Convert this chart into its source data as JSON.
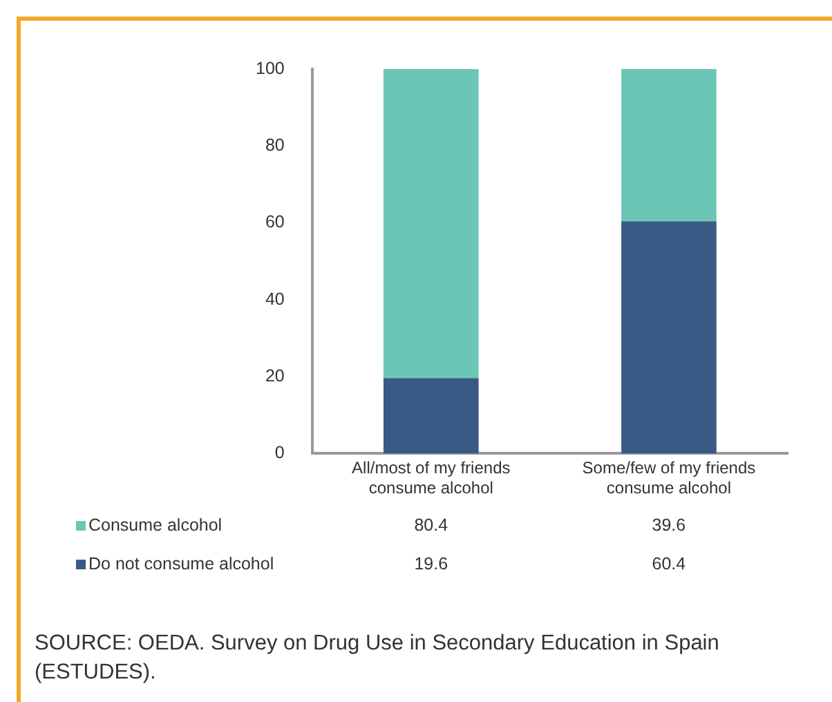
{
  "chart_data": {
    "type": "bar",
    "stacked": true,
    "categories": [
      "All/most of my friends consume alcohol",
      "Some/few of my friends consume alcohol"
    ],
    "series": [
      {
        "name": "Do not consume alcohol",
        "color": "#3a5a85",
        "values": [
          19.6,
          60.4
        ]
      },
      {
        "name": "Consume alcohol",
        "color": "#6cc6b7",
        "values": [
          80.4,
          39.6
        ]
      }
    ],
    "ylim": [
      0,
      100
    ],
    "yticks": [
      0,
      20,
      40,
      60,
      80,
      100
    ],
    "grid": false,
    "legend": "bottom",
    "data_labels": true,
    "annotations": [
      "SOURCE: OEDA. Survey on Drug Use in Secondary Education in Spain (ESTUDES)."
    ]
  }
}
